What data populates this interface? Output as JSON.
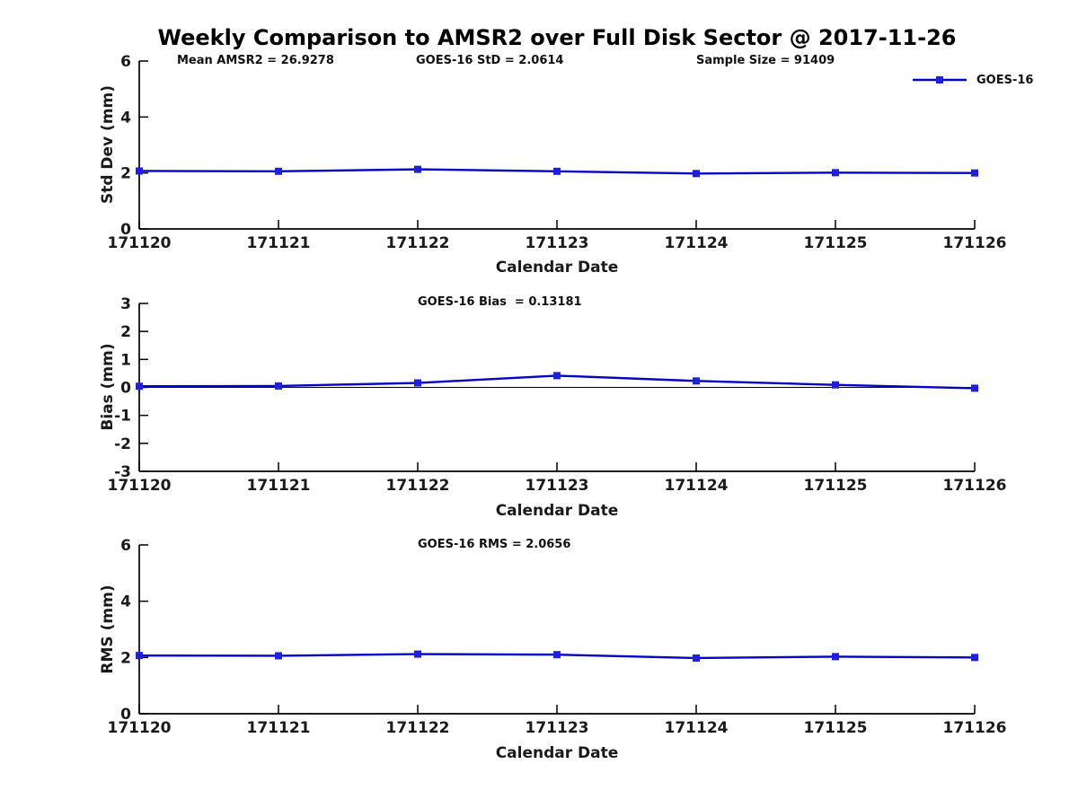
{
  "title": "Weekly Comparison to AMSR2 over Full Disk Sector @ 2017-11-26",
  "legend": {
    "label": "GOES-16"
  },
  "colors": {
    "line": "#0202c8",
    "marker": "#1f1fe0",
    "axis": "#000000",
    "zero_line": "#000000",
    "tick_text": "#1a1a1a"
  },
  "chart_data": [
    {
      "type": "line",
      "name": "std-dev",
      "title": "",
      "categories": [
        "171120",
        "171121",
        "171122",
        "171123",
        "171124",
        "171125",
        "171126"
      ],
      "series": [
        {
          "name": "GOES-16",
          "values": [
            2.07,
            2.06,
            2.13,
            2.06,
            1.98,
            2.01,
            2.0
          ]
        }
      ],
      "xlabel": "Calendar Date",
      "ylabel": "Std Dev (mm)",
      "ylim": [
        0,
        6
      ],
      "yticks": [
        0,
        2,
        4,
        6
      ],
      "grid": false,
      "zero_line": false,
      "legend_position": "top-right",
      "annotations": [
        {
          "text": "Mean AMSR2 = 26.9278"
        },
        {
          "text": "GOES-16 StD = 2.0614"
        },
        {
          "text": "Sample Size = 91409"
        }
      ]
    },
    {
      "type": "line",
      "name": "bias",
      "title": "",
      "categories": [
        "171120",
        "171121",
        "171122",
        "171123",
        "171124",
        "171125",
        "171126"
      ],
      "series": [
        {
          "name": "GOES-16",
          "values": [
            0.04,
            0.05,
            0.16,
            0.42,
            0.23,
            0.09,
            -0.03
          ]
        }
      ],
      "xlabel": "Calendar Date",
      "ylabel": "Bias (mm)",
      "ylim": [
        -3,
        3
      ],
      "yticks": [
        -3,
        -2,
        -1,
        0,
        1,
        2,
        3
      ],
      "grid": false,
      "zero_line": true,
      "legend_position": "none",
      "annotations": [
        {
          "text": "GOES-16 Bias  = 0.13181"
        }
      ]
    },
    {
      "type": "line",
      "name": "rms",
      "title": "",
      "categories": [
        "171120",
        "171121",
        "171122",
        "171123",
        "171124",
        "171125",
        "171126"
      ],
      "series": [
        {
          "name": "GOES-16",
          "values": [
            2.07,
            2.06,
            2.12,
            2.1,
            1.98,
            2.03,
            2.0
          ]
        }
      ],
      "xlabel": "Calendar Date",
      "ylabel": "RMS (mm)",
      "ylim": [
        0,
        6
      ],
      "yticks": [
        0,
        2,
        4,
        6
      ],
      "grid": false,
      "zero_line": false,
      "legend_position": "none",
      "annotations": [
        {
          "text": "GOES-16 RMS = 2.0656"
        }
      ]
    }
  ]
}
